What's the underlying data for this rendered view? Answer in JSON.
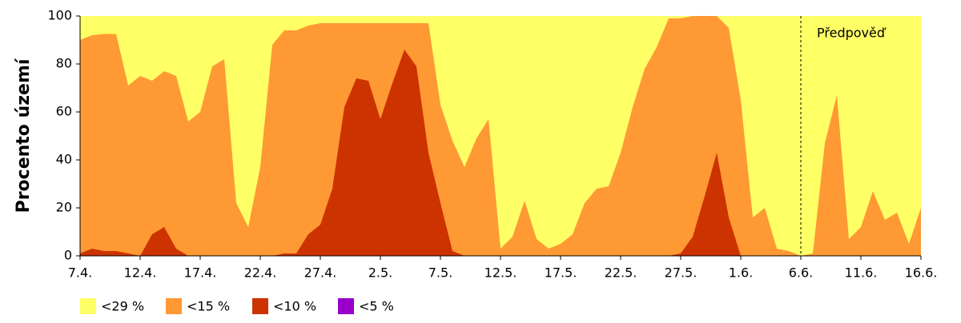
{
  "chart_data": {
    "type": "area",
    "ylabel": "Procento území",
    "categories": [
      "7.4.",
      null,
      null,
      null,
      null,
      "12.4.",
      null,
      null,
      null,
      null,
      "17.4.",
      null,
      null,
      null,
      null,
      "22.4.",
      null,
      null,
      null,
      null,
      "27.4.",
      null,
      null,
      null,
      null,
      "2.5.",
      null,
      null,
      null,
      null,
      "7.5.",
      null,
      null,
      null,
      null,
      "12.5.",
      null,
      null,
      null,
      null,
      "17.5.",
      null,
      null,
      null,
      null,
      "22.5.",
      null,
      null,
      null,
      null,
      "27.5.",
      null,
      null,
      null,
      null,
      "1.6.",
      null,
      null,
      null,
      null,
      "6.6.",
      null,
      null,
      null,
      null,
      "11.6.",
      null,
      null,
      null,
      null,
      "16.6."
    ],
    "series": [
      {
        "name": "<29 %",
        "color": "#ffff66",
        "values": [
          100,
          100,
          100,
          100,
          100,
          100,
          100,
          100,
          100,
          100,
          100,
          100,
          100,
          100,
          100,
          100,
          100,
          100,
          100,
          100,
          100,
          100,
          100,
          100,
          100,
          100,
          100,
          100,
          100,
          100,
          100,
          100,
          100,
          100,
          100,
          100,
          100,
          100,
          100,
          100,
          100,
          100,
          100,
          100,
          100,
          100,
          100,
          100,
          100,
          100,
          100,
          100,
          100,
          100,
          100,
          100,
          100,
          100,
          100,
          100,
          100,
          100,
          100,
          100,
          100,
          100,
          100,
          100,
          100,
          100,
          100
        ]
      },
      {
        "name": "<15 %",
        "color": "#ff9933",
        "values": [
          90,
          92,
          92.5,
          92.5,
          71,
          75,
          73,
          77,
          75,
          56,
          60,
          79,
          82,
          22,
          12,
          37,
          88,
          94,
          94,
          96,
          97,
          97,
          97,
          97,
          97,
          97,
          97,
          97,
          97,
          97,
          63,
          48,
          37,
          49,
          57,
          3,
          8,
          23,
          7,
          3,
          5,
          9,
          22,
          28,
          29,
          43,
          62,
          78,
          87,
          99,
          99,
          100,
          100,
          100,
          95,
          65,
          16,
          20,
          3,
          2,
          0,
          1,
          47,
          67,
          7,
          12,
          27,
          15,
          18,
          5,
          20
        ]
      },
      {
        "name": "<10 %",
        "color": "#cc3300",
        "values": [
          1,
          3,
          2,
          2,
          1,
          0,
          9,
          12,
          3,
          0,
          0,
          0,
          0,
          0,
          0,
          0,
          0,
          1,
          1,
          9,
          13,
          28,
          62,
          74,
          73,
          57,
          72,
          86,
          79,
          43,
          22,
          2,
          0,
          0,
          0,
          0,
          0,
          0,
          0,
          0,
          0,
          0,
          0,
          0,
          0,
          0,
          0,
          0,
          0,
          0,
          1,
          8,
          25,
          43,
          16,
          0,
          0,
          0,
          0,
          0,
          0,
          0,
          0,
          0,
          0,
          0,
          0,
          0,
          0,
          0,
          0
        ]
      },
      {
        "name": "<5 %",
        "color": "#9900cc",
        "values": [
          0,
          0,
          0,
          0,
          0,
          0,
          0,
          0,
          0,
          0,
          0,
          0,
          0,
          0,
          0,
          0,
          0,
          0,
          0,
          0,
          0,
          0,
          0,
          0,
          0,
          0,
          0,
          0,
          0,
          0,
          0,
          0,
          0,
          0,
          0,
          0,
          0,
          0,
          0,
          0,
          0,
          0,
          0,
          0,
          0,
          0,
          0,
          0,
          0,
          0,
          0,
          0,
          0,
          0,
          0,
          0,
          0,
          0,
          0,
          0,
          0,
          0,
          0,
          0,
          0,
          0,
          0,
          0,
          0,
          0,
          0
        ]
      }
    ],
    "annotation": {
      "text": "Předpověď",
      "x": "6.6."
    },
    "ylim": [
      0,
      100
    ],
    "yticks": [
      0,
      20,
      40,
      60,
      80,
      100
    ],
    "grid": false
  }
}
